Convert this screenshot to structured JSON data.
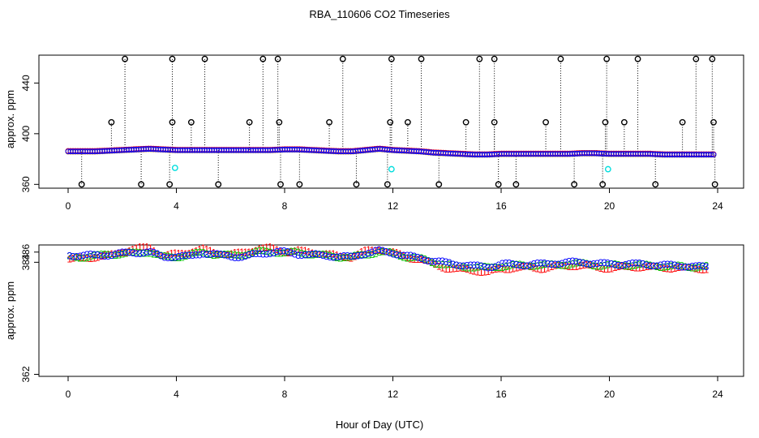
{
  "chart_data": [
    {
      "type": "scatter",
      "title": "RBA_110606  CO2 Timeseries",
      "xlabel": "",
      "ylabel": "approx. ppm",
      "xlim": [
        0,
        24
      ],
      "ylim": [
        357,
        462
      ],
      "x_ticks": [
        "0",
        "4",
        "8",
        "12",
        "16",
        "20",
        "24"
      ],
      "y_ticks": [
        "360",
        "400",
        "440"
      ],
      "grid": false,
      "legend": "none",
      "baseline_points": [
        [
          0.0,
          386.0
        ],
        [
          0.5,
          386.0
        ],
        [
          1.0,
          386.0
        ],
        [
          1.5,
          386.5
        ],
        [
          2.0,
          387.0
        ],
        [
          2.5,
          387.5
        ],
        [
          3.0,
          388.0
        ],
        [
          3.5,
          387.5
        ],
        [
          4.0,
          387.0
        ],
        [
          4.5,
          387.0
        ],
        [
          5.0,
          387.0
        ],
        [
          5.5,
          387.0
        ],
        [
          6.0,
          387.0
        ],
        [
          6.5,
          387.0
        ],
        [
          7.0,
          387.0
        ],
        [
          7.5,
          387.0
        ],
        [
          8.0,
          387.5
        ],
        [
          8.5,
          387.5
        ],
        [
          9.0,
          387.0
        ],
        [
          9.5,
          386.5
        ],
        [
          10.0,
          386.0
        ],
        [
          10.5,
          386.0
        ],
        [
          11.0,
          387.0
        ],
        [
          11.5,
          388.0
        ],
        [
          12.0,
          387.0
        ],
        [
          12.5,
          386.5
        ],
        [
          13.0,
          386.0
        ],
        [
          13.5,
          385.0
        ],
        [
          14.0,
          384.5
        ],
        [
          14.5,
          384.0
        ],
        [
          15.0,
          383.5
        ],
        [
          15.5,
          383.5
        ],
        [
          16.0,
          384.0
        ],
        [
          16.5,
          384.0
        ],
        [
          17.0,
          384.0
        ],
        [
          17.5,
          384.0
        ],
        [
          18.0,
          384.0
        ],
        [
          18.5,
          384.0
        ],
        [
          19.0,
          384.5
        ],
        [
          19.5,
          384.5
        ],
        [
          20.0,
          384.0
        ],
        [
          20.5,
          384.0
        ],
        [
          21.0,
          384.0
        ],
        [
          21.5,
          384.0
        ],
        [
          22.0,
          383.5
        ],
        [
          22.5,
          383.5
        ],
        [
          23.0,
          383.5
        ],
        [
          23.5,
          383.5
        ],
        [
          23.8,
          383.5
        ]
      ],
      "spikes_high": [
        2.1,
        3.85,
        5.05,
        7.2,
        7.75,
        10.15,
        11.95,
        13.05,
        15.2,
        15.75,
        18.2,
        19.9,
        21.05,
        23.2,
        23.8
      ],
      "spikes_mid": [
        1.6,
        3.85,
        4.55,
        6.7,
        7.8,
        9.65,
        11.9,
        12.55,
        14.7,
        15.75,
        17.65,
        19.85,
        20.55,
        22.7,
        23.85
      ],
      "spikes_low": [
        0.5,
        2.7,
        3.75,
        5.55,
        7.85,
        8.55,
        10.65,
        11.8,
        13.7,
        15.9,
        16.55,
        18.7,
        19.75,
        21.7,
        23.9
      ],
      "cyan_markers": [
        [
          3.95,
          373
        ],
        [
          11.95,
          372
        ],
        [
          19.95,
          372
        ]
      ],
      "high_value": 459,
      "mid_value": 409,
      "low_value": 360
    },
    {
      "type": "scatter",
      "title": "",
      "xlabel": "Hour of Day (UTC)",
      "ylabel": "approx. ppm",
      "xlim": [
        0,
        24
      ],
      "ylim": [
        361.6,
        387.4
      ],
      "x_ticks": [
        "0",
        "4",
        "8",
        "12",
        "16",
        "20",
        "24"
      ],
      "y_ticks": [
        "362",
        "384",
        "386"
      ],
      "y_tick_values": [
        362,
        384,
        386
      ],
      "grid": false,
      "legend": "none",
      "series": [
        {
          "symbol": "1",
          "color": "#ff0000",
          "points": [
            [
              0.0,
              384.5
            ],
            [
              0.5,
              384.8
            ],
            [
              1.0,
              385.0
            ],
            [
              1.5,
              385.3
            ],
            [
              2.0,
              386.0
            ],
            [
              2.5,
              386.6
            ],
            [
              3.0,
              387.0
            ],
            [
              3.5,
              385.2
            ],
            [
              4.0,
              385.6
            ],
            [
              4.5,
              386.0
            ],
            [
              5.0,
              386.5
            ],
            [
              5.5,
              385.8
            ],
            [
              6.0,
              385.5
            ],
            [
              6.5,
              385.9
            ],
            [
              7.0,
              386.6
            ],
            [
              7.5,
              386.8
            ],
            [
              8.0,
              386.0
            ],
            [
              8.5,
              386.2
            ],
            [
              9.0,
              386.0
            ],
            [
              9.5,
              385.6
            ],
            [
              10.0,
              385.2
            ],
            [
              10.5,
              385.0
            ],
            [
              11.0,
              386.2
            ],
            [
              11.5,
              386.5
            ],
            [
              12.0,
              385.9
            ],
            [
              12.5,
              385.0
            ],
            [
              13.0,
              384.6
            ],
            [
              13.5,
              383.6
            ],
            [
              14.0,
              382.8
            ],
            [
              14.5,
              382.6
            ],
            [
              15.0,
              382.4
            ],
            [
              15.5,
              382.0
            ],
            [
              16.0,
              382.7
            ],
            [
              16.5,
              382.9
            ],
            [
              17.0,
              383.0
            ],
            [
              17.5,
              382.8
            ],
            [
              18.0,
              383.1
            ],
            [
              18.5,
              383.3
            ],
            [
              19.0,
              383.4
            ],
            [
              19.5,
              383.0
            ],
            [
              20.0,
              382.8
            ],
            [
              20.5,
              383.0
            ],
            [
              21.0,
              383.1
            ],
            [
              21.5,
              383.0
            ],
            [
              22.0,
              382.9
            ],
            [
              22.5,
              382.9
            ],
            [
              23.0,
              382.8
            ],
            [
              23.5,
              382.7
            ]
          ]
        },
        {
          "symbol": "2",
          "color": "#00c000",
          "points": [
            [
              0.0,
              385.0
            ],
            [
              0.5,
              385.0
            ],
            [
              1.0,
              385.2
            ],
            [
              1.5,
              385.5
            ],
            [
              2.0,
              385.6
            ],
            [
              2.5,
              385.8
            ],
            [
              3.0,
              386.0
            ],
            [
              3.5,
              385.0
            ],
            [
              4.0,
              385.0
            ],
            [
              4.5,
              385.4
            ],
            [
              5.0,
              385.9
            ],
            [
              5.5,
              385.5
            ],
            [
              6.0,
              385.3
            ],
            [
              6.5,
              385.5
            ],
            [
              7.0,
              386.0
            ],
            [
              7.5,
              386.1
            ],
            [
              8.0,
              385.8
            ],
            [
              8.5,
              385.9
            ],
            [
              9.0,
              385.6
            ],
            [
              9.5,
              385.3
            ],
            [
              10.0,
              385.0
            ],
            [
              10.5,
              385.0
            ],
            [
              11.0,
              385.5
            ],
            [
              11.5,
              386.0
            ],
            [
              12.0,
              385.7
            ],
            [
              12.5,
              385.0
            ],
            [
              13.0,
              384.7
            ],
            [
              13.5,
              384.0
            ],
            [
              14.0,
              383.4
            ],
            [
              14.5,
              383.2
            ],
            [
              15.0,
              383.0
            ],
            [
              15.5,
              382.9
            ],
            [
              16.0,
              383.2
            ],
            [
              16.5,
              383.3
            ],
            [
              17.0,
              383.4
            ],
            [
              17.5,
              383.4
            ],
            [
              18.0,
              383.5
            ],
            [
              18.5,
              383.6
            ],
            [
              19.0,
              383.7
            ],
            [
              19.5,
              383.4
            ],
            [
              20.0,
              383.4
            ],
            [
              20.5,
              383.4
            ],
            [
              21.0,
              383.5
            ],
            [
              21.5,
              383.3
            ],
            [
              22.0,
              383.2
            ],
            [
              22.5,
              383.2
            ],
            [
              23.0,
              383.1
            ],
            [
              23.5,
              383.1
            ]
          ]
        },
        {
          "symbol": "3",
          "color": "#0000ff",
          "points": [
            [
              0.0,
              385.4
            ],
            [
              0.5,
              385.3
            ],
            [
              1.0,
              385.3
            ],
            [
              1.5,
              385.4
            ],
            [
              2.0,
              385.7
            ],
            [
              2.5,
              385.9
            ],
            [
              3.0,
              386.0
            ],
            [
              3.5,
              385.0
            ],
            [
              4.0,
              385.1
            ],
            [
              4.5,
              385.1
            ],
            [
              5.0,
              385.8
            ],
            [
              5.5,
              385.4
            ],
            [
              6.0,
              385.2
            ],
            [
              6.5,
              385.0
            ],
            [
              7.0,
              385.6
            ],
            [
              7.5,
              385.9
            ],
            [
              8.0,
              386.0
            ],
            [
              8.5,
              385.6
            ],
            [
              9.0,
              385.4
            ],
            [
              9.5,
              385.3
            ],
            [
              10.0,
              385.1
            ],
            [
              10.5,
              385.0
            ],
            [
              11.0,
              385.8
            ],
            [
              11.5,
              386.2
            ],
            [
              12.0,
              385.8
            ],
            [
              12.5,
              385.2
            ],
            [
              13.0,
              384.8
            ],
            [
              13.5,
              384.2
            ],
            [
              14.0,
              383.8
            ],
            [
              14.5,
              383.5
            ],
            [
              15.0,
              383.2
            ],
            [
              15.5,
              383.0
            ],
            [
              16.0,
              383.6
            ],
            [
              16.5,
              383.5
            ],
            [
              17.0,
              383.5
            ],
            [
              17.5,
              383.6
            ],
            [
              18.0,
              383.8
            ],
            [
              18.5,
              383.9
            ],
            [
              19.0,
              384.0
            ],
            [
              19.5,
              383.7
            ],
            [
              20.0,
              383.6
            ],
            [
              20.5,
              383.6
            ],
            [
              21.0,
              383.6
            ],
            [
              21.5,
              383.5
            ],
            [
              22.0,
              383.4
            ],
            [
              22.5,
              383.3
            ],
            [
              23.0,
              383.2
            ],
            [
              23.5,
              383.0
            ]
          ]
        }
      ]
    }
  ]
}
